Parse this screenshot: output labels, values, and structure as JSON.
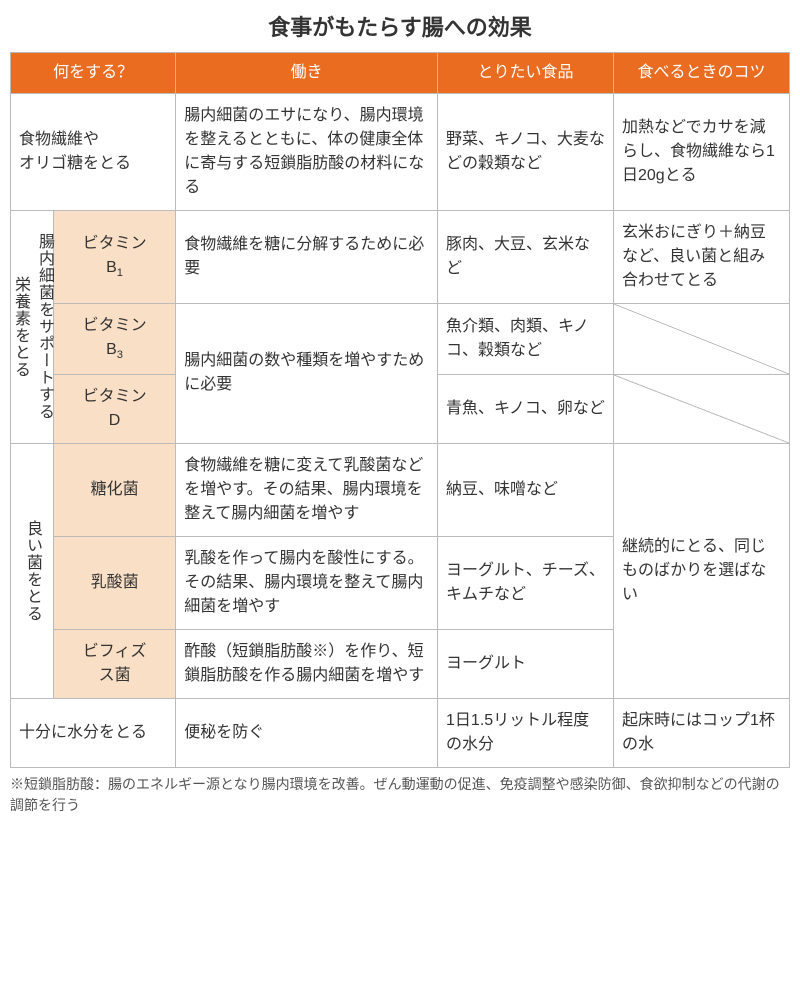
{
  "title": "食事がもたらす腸への効果",
  "headers": {
    "q": "何をする？",
    "w": "働き",
    "f": "とりたい食品",
    "t": "食べるときのコツ"
  },
  "rows": {
    "r1": {
      "q": "食物繊維や\nオリゴ糖をとる",
      "w": "腸内細菌のエサになり、腸内環境を整えるとともに、体の健康全体に寄与する短鎖脂肪酸の材料になる",
      "f": "野菜、キノコ、大麦などの穀類など",
      "t": "加熱などでカサを減らし、食物繊維なら1日20gとる"
    },
    "group_vit": {
      "label": "腸内細菌をサポートする\n栄養素をとる",
      "b1": {
        "name": "ビタミンB₁",
        "w": "食物繊維を糖に分解するために必要",
        "f": "豚肉、大豆、玄米など",
        "t": "玄米おにぎり＋納豆など、良い菌と組み合わせてとる"
      },
      "b3": {
        "name": "ビタミンB₃",
        "f": "魚介類、肉類、キノコ、穀類など"
      },
      "bd_w": "腸内細菌の数や種類を増やすために必要",
      "d": {
        "name": "ビタミンD",
        "f": "青魚、キノコ、卵など"
      }
    },
    "group_bac": {
      "label": "良い菌をとる",
      "touka": {
        "name": "糖化菌",
        "w": "食物繊維を糖に変えて乳酸菌などを増やす。その結果、腸内環境を整えて腸内細菌を増やす",
        "f": "納豆、味噌など"
      },
      "t": "継続的にとる、同じものばかりを選ばない",
      "lactic": {
        "name": "乳酸菌",
        "w": "乳酸を作って腸内を酸性にする。その結果、腸内環境を整えて腸内細菌を増やす",
        "f": "ヨーグルト、チーズ、キムチなど"
      },
      "bifid": {
        "name": "ビフィズス菌",
        "w": "酢酸（短鎖脂肪酸※）を作り、短鎖脂肪酸を作る腸内細菌を増やす",
        "f": "ヨーグルト"
      }
    },
    "water": {
      "q": "十分に水分をとる",
      "w": "便秘を防ぐ",
      "f": "1日1.5リットル程度の水分",
      "t": "起床時にはコップ1杯の水"
    }
  },
  "footnote": "※短鎖脂肪酸：腸のエネルギー源となり腸内環境を改善。ぜん動運動の促進、免疫調整や感染防御、食欲抑制などの代謝の調節を行う"
}
